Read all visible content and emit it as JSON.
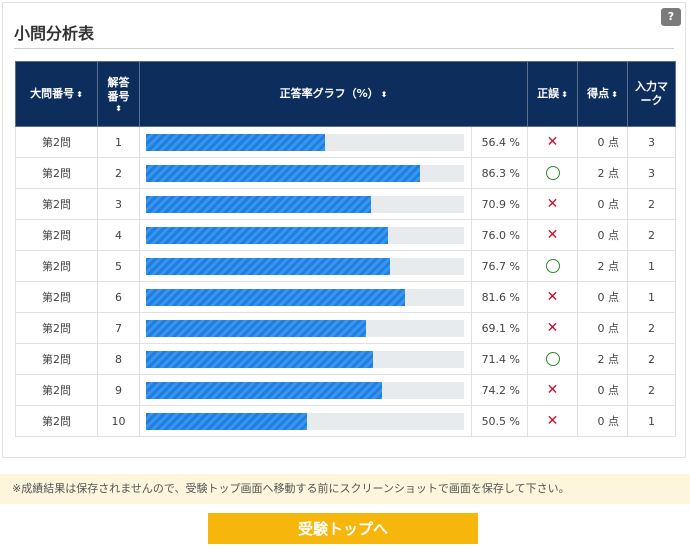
{
  "panel": {
    "title": "小問分析表",
    "help_label": "?"
  },
  "table": {
    "headers": {
      "big_q": "大問番号",
      "ans_no": "解答番号",
      "graph": "正答率グラフ（%）",
      "correct": "正誤",
      "score": "得点",
      "input": "入力マーク"
    },
    "rows": [
      {
        "big_q": "第2問",
        "ans_no": "1",
        "rate": 56.4,
        "rate_label": "56.4 %",
        "mark": "x",
        "score": "0 点",
        "input": "3"
      },
      {
        "big_q": "第2問",
        "ans_no": "2",
        "rate": 86.3,
        "rate_label": "86.3 %",
        "mark": "o",
        "score": "2 点",
        "input": "3"
      },
      {
        "big_q": "第2問",
        "ans_no": "3",
        "rate": 70.9,
        "rate_label": "70.9 %",
        "mark": "x",
        "score": "0 点",
        "input": "2"
      },
      {
        "big_q": "第2問",
        "ans_no": "4",
        "rate": 76.0,
        "rate_label": "76.0 %",
        "mark": "x",
        "score": "0 点",
        "input": "2"
      },
      {
        "big_q": "第2問",
        "ans_no": "5",
        "rate": 76.7,
        "rate_label": "76.7 %",
        "mark": "o",
        "score": "2 点",
        "input": "1"
      },
      {
        "big_q": "第2問",
        "ans_no": "6",
        "rate": 81.6,
        "rate_label": "81.6 %",
        "mark": "x",
        "score": "0 点",
        "input": "1"
      },
      {
        "big_q": "第2問",
        "ans_no": "7",
        "rate": 69.1,
        "rate_label": "69.1 %",
        "mark": "x",
        "score": "0 点",
        "input": "2"
      },
      {
        "big_q": "第2問",
        "ans_no": "8",
        "rate": 71.4,
        "rate_label": "71.4 %",
        "mark": "o",
        "score": "2 点",
        "input": "2"
      },
      {
        "big_q": "第2問",
        "ans_no": "9",
        "rate": 74.2,
        "rate_label": "74.2 %",
        "mark": "x",
        "score": "0 点",
        "input": "2"
      },
      {
        "big_q": "第2問",
        "ans_no": "10",
        "rate": 50.5,
        "rate_label": "50.5 %",
        "mark": "x",
        "score": "0 点",
        "input": "1"
      }
    ]
  },
  "notice": {
    "text": "※成績結果は保存されませんので、受験トップ画面へ移動する前にスクリーンショットで画面を保存して下さい。"
  },
  "footer": {
    "top_button_label": "受験トップへ"
  },
  "colors": {
    "header_bg": "#0d2d5c",
    "bar_fill": "#1e7fe0",
    "incorrect": "#c8102e",
    "correct": "#2e8b2e",
    "button": "#f6b60c"
  }
}
